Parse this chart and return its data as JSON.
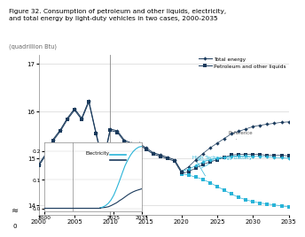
{
  "title": "Figure 32. Consumption of petroleum and other liquids, electricity,\nand total energy by light-duty vehicles in two cases, 2000-2035",
  "subtitle": "(quadrillion Btu)",
  "years_hist": [
    2000,
    2001,
    2002,
    2003,
    2004,
    2005,
    2006,
    2007,
    2008,
    2009,
    2010,
    2011,
    2012,
    2013,
    2014,
    2015,
    2016,
    2017,
    2018,
    2019,
    2020
  ],
  "years_proj": [
    2020,
    2021,
    2022,
    2023,
    2024,
    2025,
    2026,
    2027,
    2028,
    2029,
    2030,
    2031,
    2032,
    2033,
    2034,
    2035
  ],
  "total_energy_hist": [
    14.87,
    15.1,
    15.4,
    15.6,
    15.85,
    16.05,
    15.85,
    16.22,
    15.55,
    14.92,
    15.62,
    15.58,
    15.38,
    15.32,
    15.32,
    15.22,
    15.12,
    15.07,
    15.02,
    14.97,
    14.72
  ],
  "total_energy_ref": [
    14.72,
    14.82,
    14.97,
    15.1,
    15.22,
    15.32,
    15.42,
    15.52,
    15.57,
    15.62,
    15.67,
    15.7,
    15.72,
    15.74,
    15.76,
    15.77
  ],
  "total_energy_htb": [
    14.72,
    14.77,
    14.84,
    14.92,
    14.97,
    15.0,
    15.02,
    15.04,
    15.05,
    15.05,
    15.04,
    15.04,
    15.03,
    15.02,
    15.01,
    15.0
  ],
  "petrol_hist": [
    14.84,
    15.07,
    15.37,
    15.57,
    15.82,
    16.02,
    15.82,
    16.19,
    15.52,
    14.89,
    15.59,
    15.55,
    15.35,
    15.29,
    15.29,
    15.19,
    15.09,
    15.04,
    14.99,
    14.94,
    14.69
  ],
  "petrol_ref": [
    14.67,
    14.72,
    14.79,
    14.87,
    14.92,
    14.97,
    15.02,
    15.07,
    15.08,
    15.08,
    15.08,
    15.08,
    15.06,
    15.06,
    15.06,
    15.05
  ],
  "petrol_htb": [
    14.67,
    14.64,
    14.6,
    14.55,
    14.48,
    14.4,
    14.32,
    14.24,
    14.17,
    14.12,
    14.08,
    14.05,
    14.03,
    14.01,
    13.99,
    13.97
  ],
  "elec_ref": [
    0.002,
    0.003,
    0.004,
    0.006,
    0.01,
    0.015,
    0.02,
    0.027,
    0.033,
    0.04,
    0.047,
    0.053,
    0.058,
    0.062,
    0.065,
    0.068
  ],
  "elec_htb": [
    0.002,
    0.005,
    0.01,
    0.018,
    0.03,
    0.047,
    0.07,
    0.095,
    0.122,
    0.148,
    0.168,
    0.185,
    0.198,
    0.207,
    0.213,
    0.215
  ],
  "elec_hist_val": 0.002,
  "color_dark": "#1a3a5c",
  "color_cyan": "#29b4d8",
  "ylim": [
    13.8,
    17.2
  ],
  "yticks": [
    14,
    15,
    16,
    17
  ],
  "xticks": [
    2000,
    2005,
    2010,
    2015,
    2020,
    2025,
    2030,
    2035
  ]
}
